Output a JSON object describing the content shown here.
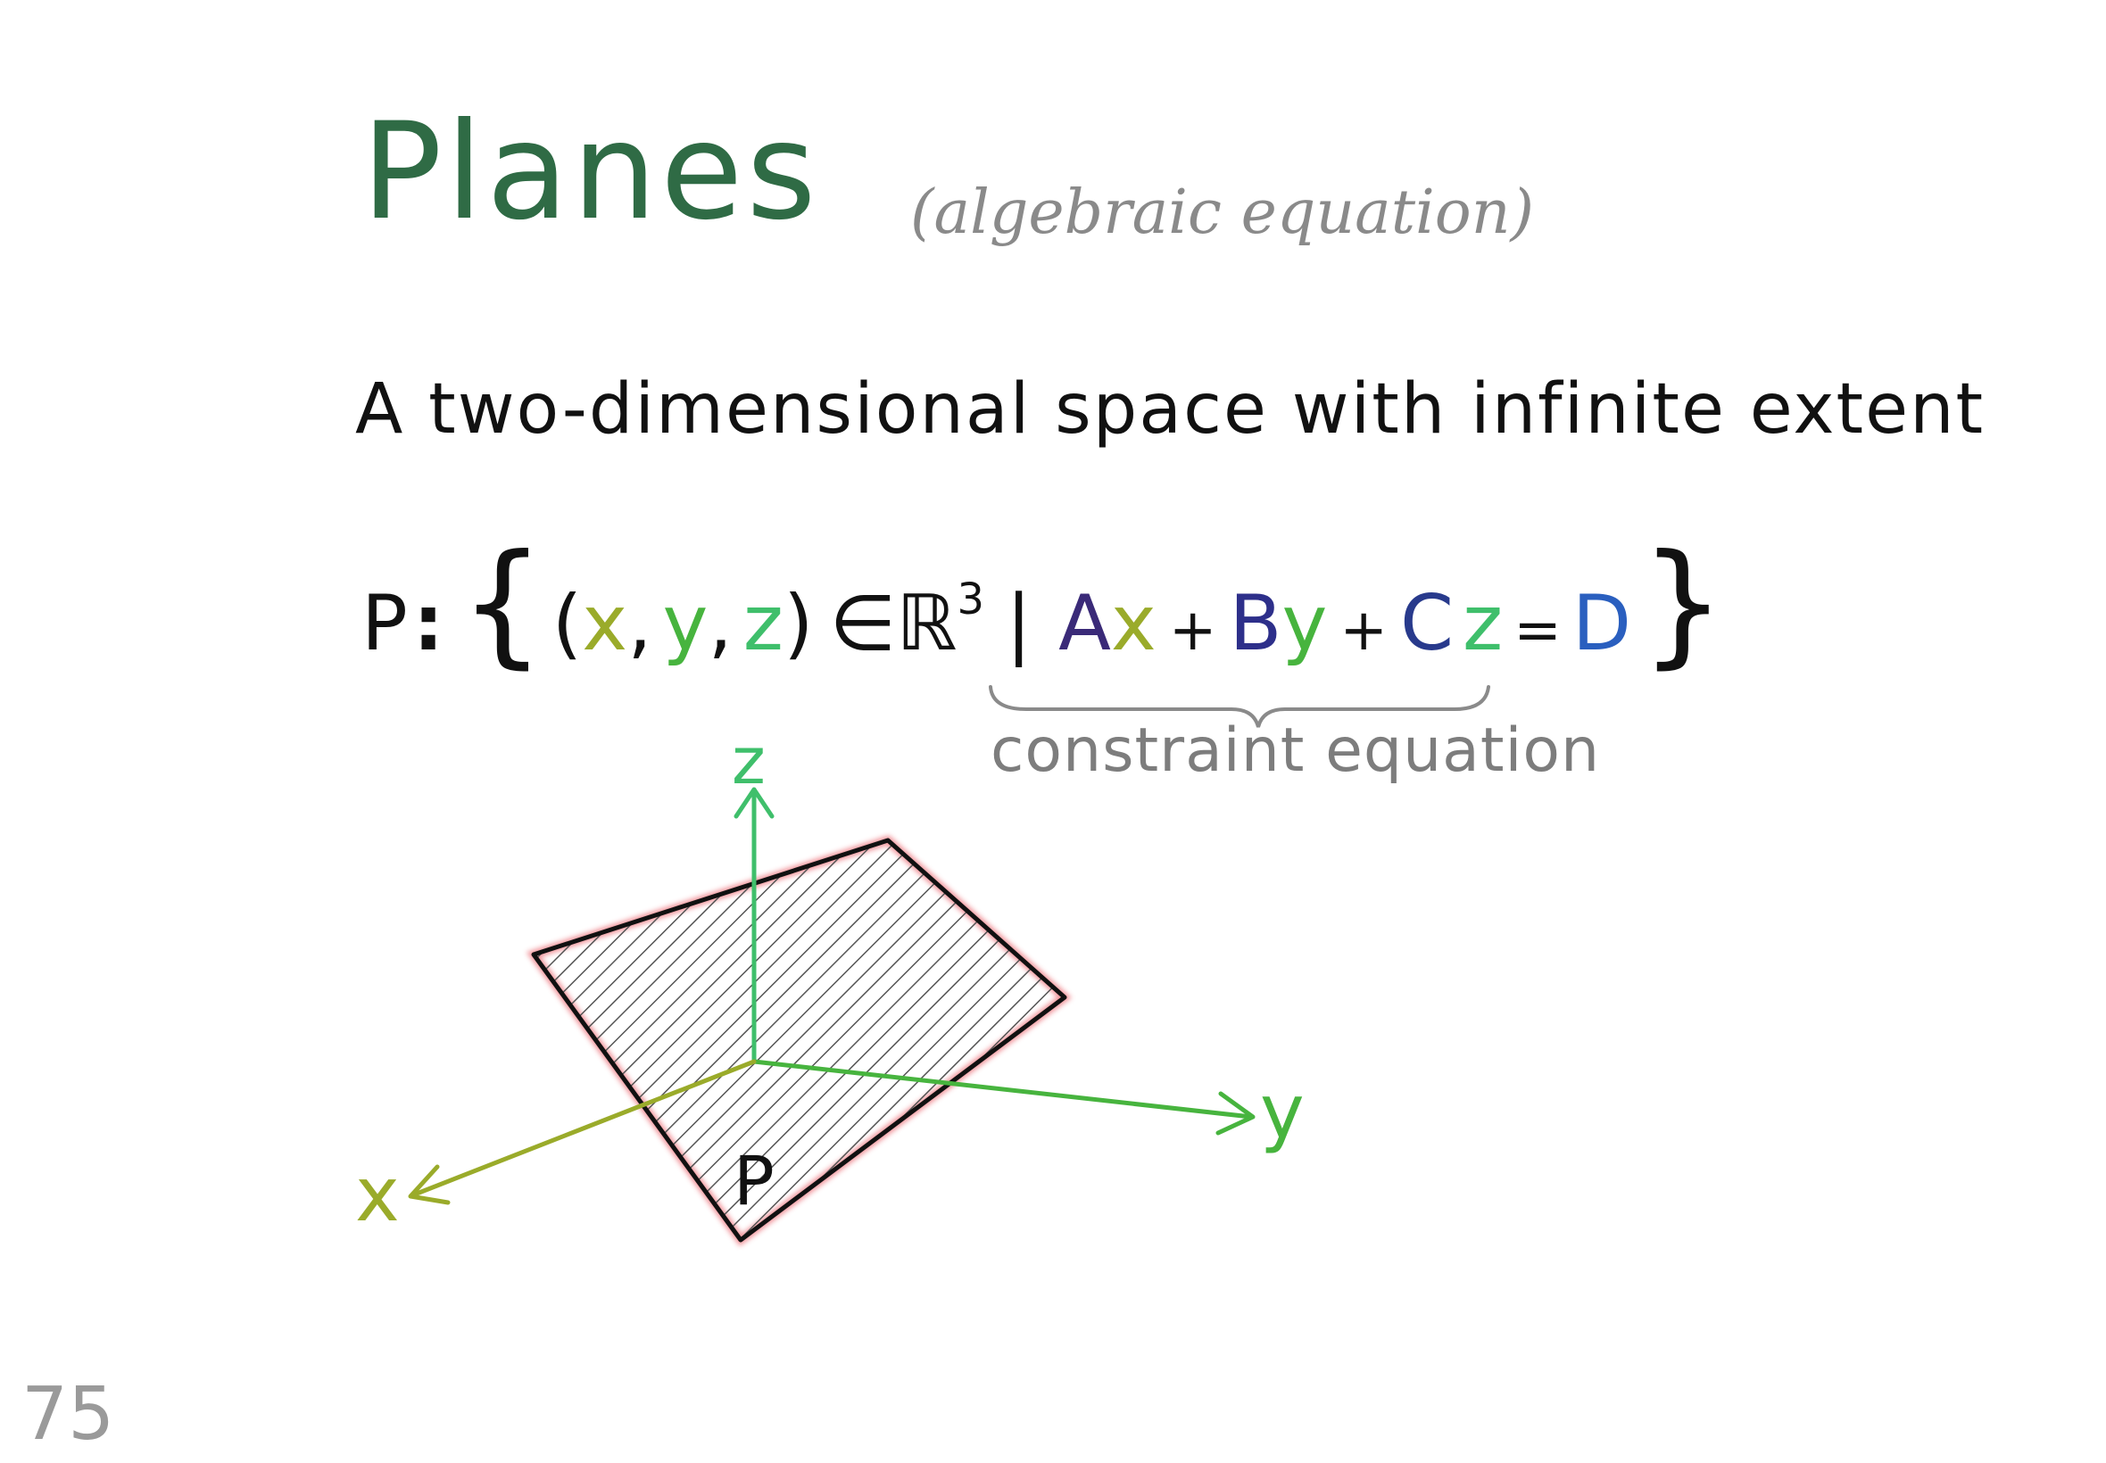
{
  "slide": {
    "title": "Planes",
    "subtitle": "(algebraic equation)",
    "description": "A two-dimensional space with infinite extent",
    "page_number": "75"
  },
  "equation": {
    "plane_name": "P",
    "colon": ":",
    "open_brace": "{",
    "tuple_open": "(",
    "x": "x",
    "comma1": ",",
    "y": "y",
    "comma2": ",",
    "z": "z",
    "tuple_close": ")",
    "member": "∈",
    "reals": "ℝ",
    "power": "3",
    "bar": "|",
    "A": "A",
    "plus1": "+",
    "B": "B",
    "plus2": "+",
    "C": "C",
    "equals": "=",
    "D": "D",
    "close_brace": "}",
    "constraint_label": "constraint equation"
  },
  "diagram": {
    "x_label": "x",
    "y_label": "y",
    "z_label": "z",
    "plane_label": "P"
  },
  "colors": {
    "title": "#2f6b45",
    "x_axis": "#9aab2a",
    "y_axis": "#47b43e",
    "z_axis": "#3fbf6b",
    "coef_A": "#3a2a78",
    "coef_B": "#2d2f8a",
    "coef_C": "#283a8c",
    "coef_D": "#2a5fbf",
    "plane_outline": "#e8505a"
  }
}
